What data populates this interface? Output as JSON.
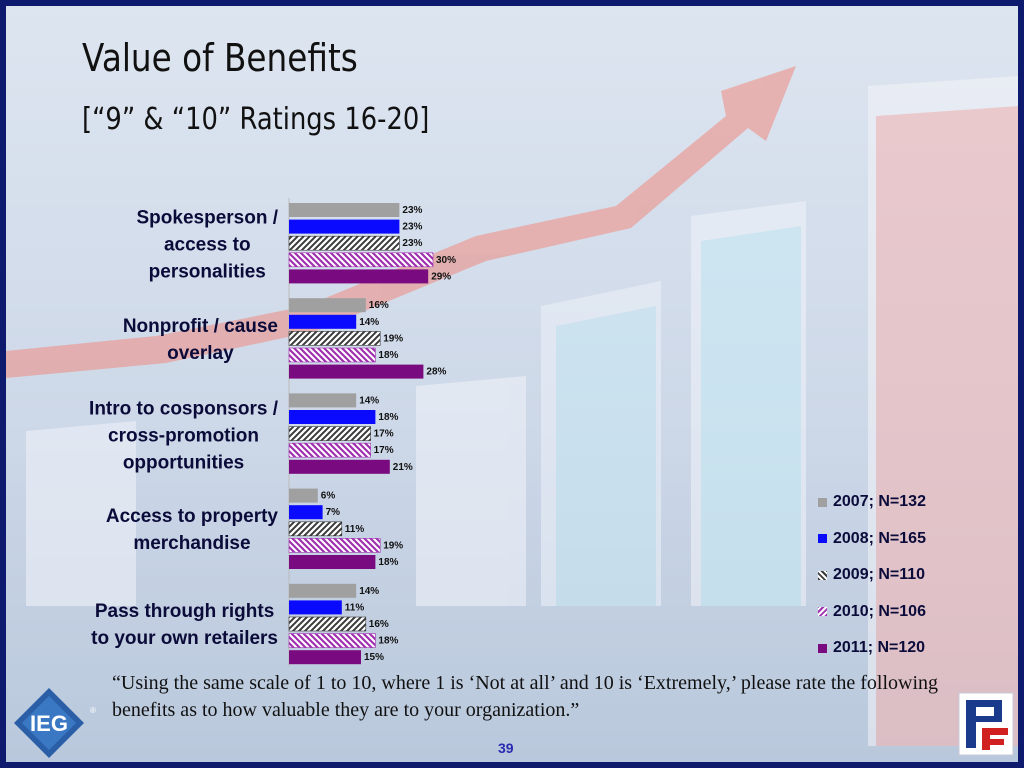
{
  "title": "Value of Benefits",
  "subtitle": "[“9” & “10” Ratings 16-20]",
  "logo_text": "IEG",
  "footnote": "“Using the same scale of 1 to 10, where 1 is ‘Not at all’ and 10 is ‘Extremely,’ please rate the following benefits as to how valuable they are to your organization.”",
  "page_number": "39",
  "chart_data": {
    "type": "bar",
    "orientation": "horizontal",
    "categories": [
      "Spokesperson /\naccess to\npersonalities",
      "Nonprofit / cause\noverlay",
      "Intro to cosponsors /\ncross-promotion\nopportunities",
      "Access to property\nmerchandise",
      "Pass through rights\nto your own retailers"
    ],
    "series": [
      {
        "name": "2007; N=132",
        "color": "#a0a0a0",
        "pattern": "solid",
        "values": [
          23,
          16,
          14,
          6,
          14
        ]
      },
      {
        "name": "2008; N=165",
        "color": "#0a0aff",
        "pattern": "solid",
        "values": [
          23,
          14,
          18,
          7,
          11
        ]
      },
      {
        "name": "2009; N=110",
        "color": "#3a3a3a",
        "pattern": "hatch-dark",
        "values": [
          23,
          19,
          17,
          11,
          16
        ]
      },
      {
        "name": "2010; N=106",
        "color": "#a030b0",
        "pattern": "hatch-purple",
        "values": [
          30,
          18,
          17,
          19,
          18
        ]
      },
      {
        "name": "2011; N=120",
        "color": "#7a0a80",
        "pattern": "solid",
        "values": [
          29,
          28,
          21,
          18,
          15
        ]
      }
    ],
    "value_suffix": "%",
    "xlim": [
      0,
      100
    ],
    "grid": false,
    "legend_position": "right"
  }
}
